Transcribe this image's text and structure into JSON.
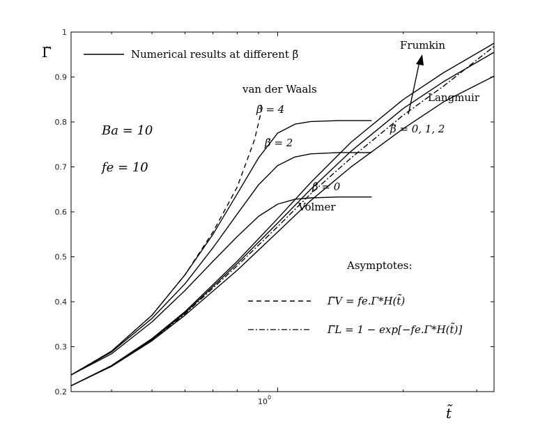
{
  "chart_data": {
    "type": "line",
    "x_scale": "log",
    "xlim": [
      0.32,
      3.3
    ],
    "ylim": [
      0.2,
      1.0
    ],
    "grid": false,
    "x_tick_labels": [
      "10",
      "0"
    ],
    "y_ticks": [
      "0.2",
      "0.3",
      "0.4",
      "0.5",
      "0.6",
      "0.7",
      "0.8",
      "0.9",
      "1"
    ],
    "xlabel": "t̃",
    "ylabel": "Γ̃",
    "legend": [
      {
        "style": "solid",
        "label": "Numerical results at different β̃"
      }
    ],
    "asymptotes_title": "Asymptotes:",
    "asymptote_legend": [
      {
        "style": "dashed",
        "label": "Γ̃V = fe.Γ*H(t̃)"
      },
      {
        "style": "dashdot",
        "label": "Γ̃L = 1 − exp[−fe.Γ*H(t̃)]"
      }
    ],
    "annotations": {
      "ba": "Ba = 10",
      "fe": "fe = 10",
      "van_der_waals": "van der Waals",
      "beta4": "β̃ = 4",
      "beta2": "β̃ = 2",
      "beta0": "β̃ = 0",
      "volmer": "Volmer",
      "frumkin": "Frumkin",
      "langmuir": "Langmuir",
      "beta_list": "β̃ = 0, 1, 2"
    },
    "series": [
      {
        "style": "solid",
        "x": [
          0.32,
          0.4,
          0.5,
          0.6,
          0.7,
          0.8,
          0.9,
          1.0,
          1.1,
          1.2,
          1.4,
          1.5,
          1.6,
          1.68
        ],
        "y": [
          0.237,
          0.29,
          0.37,
          0.46,
          0.55,
          0.64,
          0.72,
          0.775,
          0.795,
          0.801,
          0.803,
          0.803,
          0.803,
          0.803
        ]
      },
      {
        "style": "solid",
        "x": [
          0.32,
          0.4,
          0.5,
          0.6,
          0.7,
          0.8,
          0.9,
          1.0,
          1.1,
          1.2,
          1.4,
          1.6,
          1.68
        ],
        "y": [
          0.237,
          0.288,
          0.363,
          0.44,
          0.52,
          0.595,
          0.66,
          0.703,
          0.722,
          0.729,
          0.732,
          0.732,
          0.732
        ]
      },
      {
        "style": "solid",
        "x": [
          0.32,
          0.4,
          0.5,
          0.6,
          0.7,
          0.8,
          0.9,
          1.0,
          1.1,
          1.2,
          1.4,
          1.6,
          1.68
        ],
        "y": [
          0.237,
          0.284,
          0.355,
          0.425,
          0.49,
          0.545,
          0.59,
          0.617,
          0.628,
          0.631,
          0.633,
          0.633,
          0.633
        ]
      },
      {
        "style": "dashed",
        "x": [
          0.32,
          0.4,
          0.5,
          0.6,
          0.7,
          0.8,
          0.88,
          0.92
        ],
        "y": [
          0.237,
          0.29,
          0.37,
          0.46,
          0.555,
          0.655,
          0.76,
          0.835
        ]
      },
      {
        "style": "solid",
        "x": [
          0.32,
          0.4,
          0.5,
          0.6,
          0.8,
          1.0,
          1.2,
          1.5,
          2.0,
          2.5,
          3.3
        ],
        "y": [
          0.213,
          0.258,
          0.318,
          0.378,
          0.49,
          0.585,
          0.665,
          0.755,
          0.85,
          0.91,
          0.975
        ]
      },
      {
        "style": "solid",
        "x": [
          0.32,
          0.4,
          0.5,
          0.6,
          0.8,
          1.0,
          1.2,
          1.5,
          2.0,
          2.5,
          3.3
        ],
        "y": [
          0.213,
          0.257,
          0.316,
          0.375,
          0.485,
          0.575,
          0.65,
          0.735,
          0.83,
          0.89,
          0.955
        ]
      },
      {
        "style": "solid",
        "x": [
          0.32,
          0.4,
          0.5,
          0.6,
          0.8,
          1.0,
          1.2,
          1.5,
          2.0,
          2.5,
          3.3
        ],
        "y": [
          0.213,
          0.256,
          0.313,
          0.37,
          0.47,
          0.555,
          0.625,
          0.7,
          0.785,
          0.845,
          0.902
        ]
      },
      {
        "style": "dashdot",
        "x": [
          0.32,
          0.4,
          0.5,
          0.6,
          0.8,
          1.0,
          1.2,
          1.5,
          2.0,
          2.5,
          3.3
        ],
        "y": [
          0.213,
          0.257,
          0.315,
          0.373,
          0.48,
          0.567,
          0.64,
          0.72,
          0.815,
          0.88,
          0.968
        ]
      }
    ]
  }
}
